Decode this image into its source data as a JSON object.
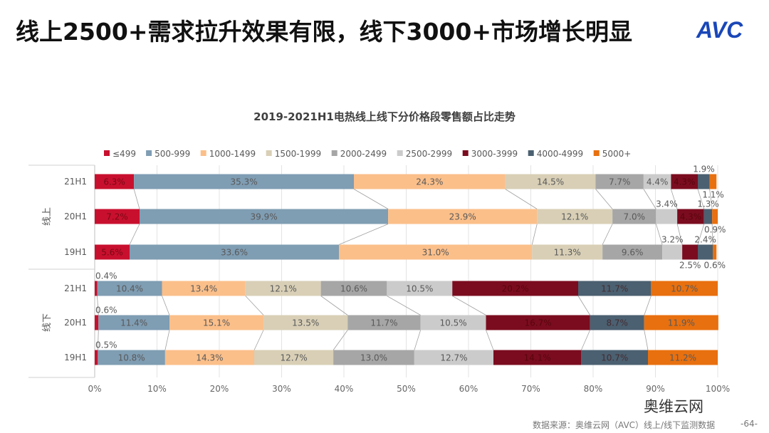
{
  "page_title": "线上2500+需求拉升效果有限，线下3000+市场增长明显",
  "logo_text": "AVC",
  "watermark": "AVC 奥维云网 ALL VIEW CLOUD",
  "footer": {
    "source": "数据来源：奥维云网（AVC）线上/线下监测数据",
    "page": "-64-",
    "brand": "奥维云网"
  },
  "chart_data": {
    "type": "bar",
    "orientation": "horizontal-stacked-100",
    "title": "2019-2021H1电热线上线下分价格段零售额占比走势",
    "legend_position": "top",
    "xlim": [
      0,
      100
    ],
    "x_ticks": [
      "0%",
      "10%",
      "20%",
      "30%",
      "40%",
      "50%",
      "60%",
      "70%",
      "80%",
      "90%",
      "100%"
    ],
    "groups": [
      {
        "label": "线上",
        "categories": [
          "21H1",
          "20H1",
          "19H1"
        ]
      },
      {
        "label": "线下",
        "categories": [
          "21H1",
          "20H1",
          "19H1"
        ]
      }
    ],
    "series": [
      {
        "name": "≤499",
        "color": "#c8102e",
        "values": [
          6.3,
          7.2,
          5.6,
          0.4,
          0.6,
          0.5
        ]
      },
      {
        "name": "500-999",
        "color": "#7f9db3",
        "values": [
          35.3,
          39.9,
          33.6,
          10.4,
          11.4,
          10.8
        ]
      },
      {
        "name": "1000-1499",
        "color": "#fbbf8a",
        "values": [
          24.3,
          23.9,
          31.0,
          13.4,
          15.1,
          14.3
        ]
      },
      {
        "name": "1500-1999",
        "color": "#d8cfb6",
        "values": [
          14.5,
          12.1,
          11.3,
          12.1,
          13.5,
          12.7
        ]
      },
      {
        "name": "2000-2499",
        "color": "#a6a6a6",
        "values": [
          7.7,
          7.0,
          9.6,
          10.6,
          11.7,
          13.0
        ]
      },
      {
        "name": "2500-2999",
        "color": "#cbcbcb",
        "values": [
          4.4,
          3.4,
          3.2,
          10.5,
          10.5,
          12.7
        ]
      },
      {
        "name": "3000-3999",
        "color": "#7b0c1f",
        "values": [
          4.3,
          4.3,
          2.5,
          20.2,
          16.7,
          14.1
        ]
      },
      {
        "name": "4000-4999",
        "color": "#4b6070",
        "values": [
          1.9,
          1.3,
          2.4,
          11.7,
          8.7,
          10.7
        ]
      },
      {
        "name": "5000+",
        "color": "#e8700f",
        "values": [
          1.1,
          0.9,
          0.6,
          10.7,
          11.9,
          11.2
        ]
      }
    ]
  }
}
